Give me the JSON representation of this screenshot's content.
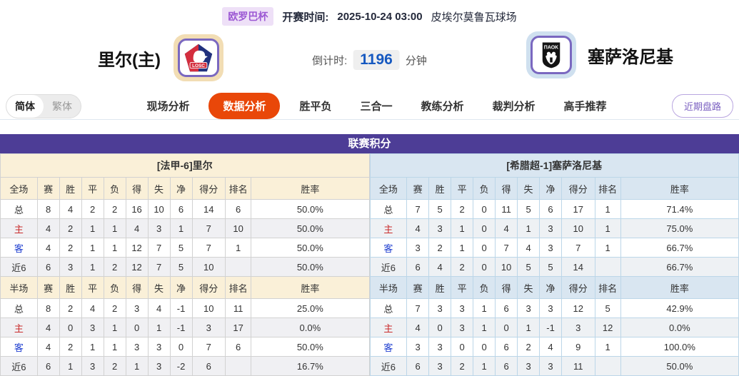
{
  "header": {
    "league_badge": "欧罗巴杯",
    "kickoff_label": "开赛时间:",
    "kickoff_time": "2025-10-24 03:00",
    "venue": "皮埃尔莫鲁瓦球场",
    "home_team": "里尔(主)",
    "away_team": "塞萨洛尼基",
    "home_logo_text": "LOSC",
    "away_logo_text": "ΠΑΟΚ",
    "countdown_label": "倒计时:",
    "countdown_value": "1196",
    "countdown_unit": "分钟"
  },
  "nav": {
    "lang_simplified": "简体",
    "lang_traditional": "繁体",
    "tabs": [
      "现场分析",
      "数据分析",
      "胜平负",
      "三合一",
      "教练分析",
      "裁判分析",
      "高手推荐"
    ],
    "active_tab": "数据分析",
    "recent_button": "近期盘路"
  },
  "table": {
    "title": "联赛积分",
    "columns_full": [
      "全场",
      "赛",
      "胜",
      "平",
      "负",
      "得",
      "失",
      "净",
      "得分",
      "排名",
      "胜率"
    ],
    "columns_half": [
      "半场",
      "赛",
      "胜",
      "平",
      "负",
      "得",
      "失",
      "净",
      "得分",
      "排名",
      "胜率"
    ],
    "home": {
      "subtitle": "[法甲-6]里尔",
      "full_rows": [
        {
          "label": "总",
          "cells": [
            "8",
            "4",
            "2",
            "2",
            "16",
            "10",
            "6",
            "14",
            "6",
            "50.0%"
          ]
        },
        {
          "label": "主",
          "cells": [
            "4",
            "2",
            "1",
            "1",
            "4",
            "3",
            "1",
            "7",
            "10",
            "50.0%"
          ]
        },
        {
          "label": "客",
          "cells": [
            "4",
            "2",
            "1",
            "1",
            "12",
            "7",
            "5",
            "7",
            "1",
            "50.0%"
          ]
        },
        {
          "label": "近6",
          "cells": [
            "6",
            "3",
            "1",
            "2",
            "12",
            "7",
            "5",
            "10",
            "",
            "50.0%"
          ]
        }
      ],
      "half_rows": [
        {
          "label": "总",
          "cells": [
            "8",
            "2",
            "4",
            "2",
            "3",
            "4",
            "-1",
            "10",
            "11",
            "25.0%"
          ]
        },
        {
          "label": "主",
          "cells": [
            "4",
            "0",
            "3",
            "1",
            "0",
            "1",
            "-1",
            "3",
            "17",
            "0.0%"
          ]
        },
        {
          "label": "客",
          "cells": [
            "4",
            "2",
            "1",
            "1",
            "3",
            "3",
            "0",
            "7",
            "6",
            "50.0%"
          ]
        },
        {
          "label": "近6",
          "cells": [
            "6",
            "1",
            "3",
            "2",
            "1",
            "3",
            "-2",
            "6",
            "",
            "16.7%"
          ]
        }
      ]
    },
    "away": {
      "subtitle": "[希腊超-1]塞萨洛尼基",
      "full_rows": [
        {
          "label": "总",
          "cells": [
            "7",
            "5",
            "2",
            "0",
            "11",
            "5",
            "6",
            "17",
            "1",
            "71.4%"
          ]
        },
        {
          "label": "主",
          "cells": [
            "4",
            "3",
            "1",
            "0",
            "4",
            "1",
            "3",
            "10",
            "1",
            "75.0%"
          ]
        },
        {
          "label": "客",
          "cells": [
            "3",
            "2",
            "1",
            "0",
            "7",
            "4",
            "3",
            "7",
            "1",
            "66.7%"
          ]
        },
        {
          "label": "近6",
          "cells": [
            "6",
            "4",
            "2",
            "0",
            "10",
            "5",
            "5",
            "14",
            "",
            "66.7%"
          ]
        }
      ],
      "half_rows": [
        {
          "label": "总",
          "cells": [
            "7",
            "3",
            "3",
            "1",
            "6",
            "3",
            "3",
            "12",
            "5",
            "42.9%"
          ]
        },
        {
          "label": "主",
          "cells": [
            "4",
            "0",
            "3",
            "1",
            "0",
            "1",
            "-1",
            "3",
            "12",
            "0.0%"
          ]
        },
        {
          "label": "客",
          "cells": [
            "3",
            "3",
            "0",
            "0",
            "6",
            "2",
            "4",
            "9",
            "1",
            "100.0%"
          ]
        },
        {
          "label": "近6",
          "cells": [
            "6",
            "3",
            "2",
            "1",
            "6",
            "3",
            "3",
            "11",
            "",
            "50.0%"
          ]
        }
      ]
    }
  },
  "colors": {
    "board_title_bg": "#4d3d96",
    "active_tab_bg": "#e94709",
    "home_panel_bg": "#faf0d8",
    "away_panel_bg": "#d9e6f1",
    "home_row_label_red": "#c92b2b",
    "away_row_label_blue": "#1f3ed0",
    "countdown_blue": "#1558c0",
    "league_badge_purple": "#9b57d3"
  }
}
